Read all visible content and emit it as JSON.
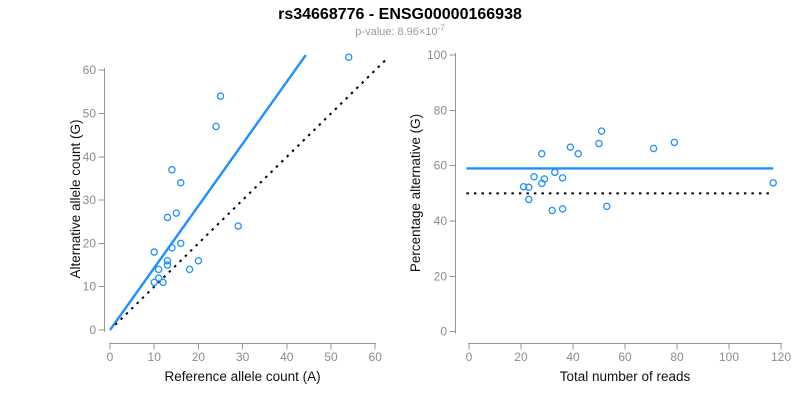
{
  "header": {
    "title": "rs34668776 - ENSG00000166938",
    "pvalue_label": "p-value: 8.96×10",
    "pvalue_exponent": "-7"
  },
  "colors": {
    "accent_blue": "#1E90FF",
    "line_black": "#000000",
    "axis_gray": "#969696",
    "tick_label_gray": "#8c8c8c",
    "axis_title_black": "#111111"
  },
  "chart_data": [
    {
      "type": "scatter",
      "name": "allele-counts",
      "xlabel": "Reference allele count (A)",
      "ylabel": "Alternative allele count (G)",
      "xlim": [
        0,
        60
      ],
      "ylim": [
        0,
        60
      ],
      "xticks": [
        0,
        10,
        20,
        30,
        40,
        50,
        60
      ],
      "yticks": [
        0,
        10,
        20,
        30,
        40,
        50,
        60
      ],
      "grid": false,
      "points": [
        [
          54,
          63
        ],
        [
          25,
          54
        ],
        [
          24,
          47
        ],
        [
          14,
          37
        ],
        [
          16,
          34
        ],
        [
          15,
          27
        ],
        [
          13,
          26
        ],
        [
          29,
          24
        ],
        [
          16,
          20
        ],
        [
          14,
          19
        ],
        [
          10,
          18
        ],
        [
          13,
          16
        ],
        [
          13,
          15
        ],
        [
          11,
          14
        ],
        [
          20,
          16
        ],
        [
          18,
          14
        ],
        [
          10,
          11
        ],
        [
          11,
          12
        ],
        [
          12,
          11
        ]
      ],
      "lines": [
        {
          "name": "fit-line",
          "style": "solid",
          "color_key": "accent_blue",
          "from": [
            0,
            0
          ],
          "to": [
            44.3,
            63.5
          ]
        },
        {
          "name": "identity-line",
          "style": "dotted",
          "color_key": "line_black",
          "from": [
            1.2,
            1.2
          ],
          "to": [
            62.5,
            62.5
          ]
        }
      ]
    },
    {
      "type": "scatter",
      "name": "percentage-alternative",
      "xlabel": "Total number of reads",
      "ylabel": "Percentage alternative (G)",
      "xlim": [
        0,
        120
      ],
      "ylim": [
        0,
        100
      ],
      "xticks": [
        0,
        20,
        40,
        60,
        80,
        100,
        120
      ],
      "yticks": [
        0,
        20,
        40,
        60,
        80,
        100
      ],
      "grid": false,
      "points": [
        [
          117,
          53.8
        ],
        [
          79,
          68.4
        ],
        [
          71,
          66.2
        ],
        [
          51,
          72.5
        ],
        [
          50,
          68
        ],
        [
          42,
          64.3
        ],
        [
          39,
          66.7
        ],
        [
          53,
          45.3
        ],
        [
          36,
          55.6
        ],
        [
          33,
          57.6
        ],
        [
          28,
          64.3
        ],
        [
          29,
          55.2
        ],
        [
          28,
          53.6
        ],
        [
          25,
          56
        ],
        [
          36,
          44.4
        ],
        [
          32,
          43.8
        ],
        [
          21,
          52.4
        ],
        [
          23,
          52.2
        ],
        [
          23,
          47.8
        ]
      ],
      "lines": [
        {
          "name": "fit-line",
          "style": "solid",
          "color_key": "accent_blue",
          "y": 59,
          "x_from": -1,
          "x_to": 117
        },
        {
          "name": "null-line",
          "style": "dotted",
          "color_key": "line_black",
          "y": 50,
          "x_from": -1,
          "x_to": 117
        }
      ]
    }
  ]
}
